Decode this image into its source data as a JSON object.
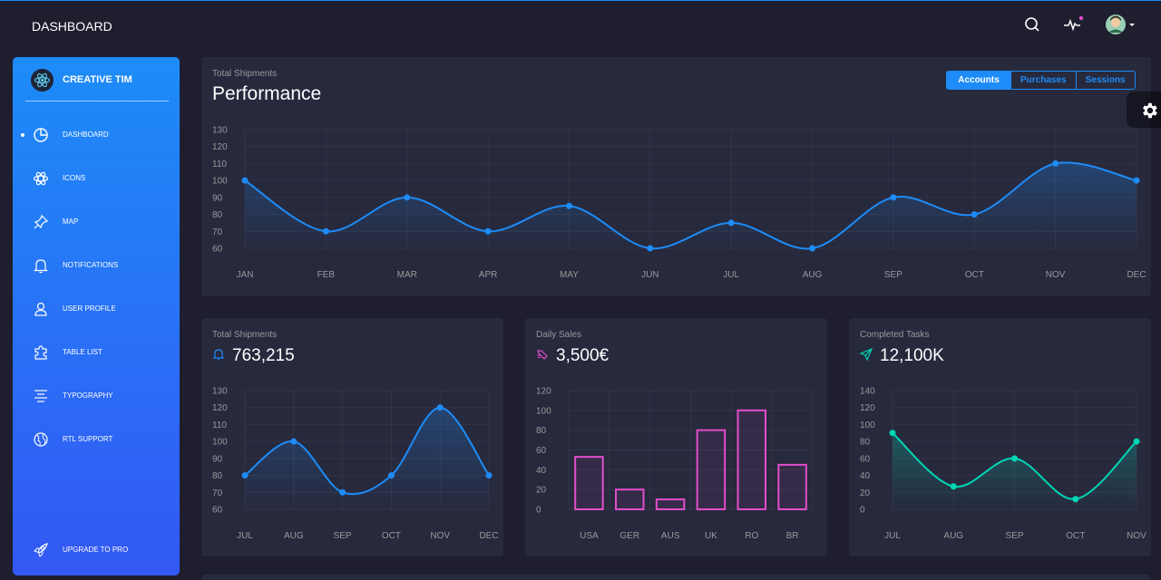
{
  "navbar": {
    "brand": "DASHBOARD",
    "icons": [
      "search-icon",
      "activity-icon",
      "avatar"
    ],
    "notification_color": "#e14eca"
  },
  "sidebar": {
    "logo_text": "CREATIVE TIM",
    "items": [
      {
        "label": "DASHBOARD",
        "icon": "chart-pie-icon",
        "active": true
      },
      {
        "label": "ICONS",
        "icon": "atom-icon",
        "active": false
      },
      {
        "label": "MAP",
        "icon": "pin-icon",
        "active": false
      },
      {
        "label": "NOTIFICATIONS",
        "icon": "bell-icon",
        "active": false
      },
      {
        "label": "USER PROFILE",
        "icon": "user-icon",
        "active": false
      },
      {
        "label": "TABLE LIST",
        "icon": "puzzle-icon",
        "active": false
      },
      {
        "label": "TYPOGRAPHY",
        "icon": "align-center-icon",
        "active": false
      },
      {
        "label": "RTL SUPPORT",
        "icon": "world-icon",
        "active": false
      }
    ],
    "upgrade_label": "UPGRADE TO PRO"
  },
  "main_card": {
    "category": "Total Shipments",
    "title": "Performance",
    "tabs": [
      "Accounts",
      "Purchases",
      "Sessions"
    ],
    "active_tab": "Accounts"
  },
  "cards": {
    "shipments": {
      "category": "Total Shipments",
      "value": "763,215",
      "icon": "bell-icon"
    },
    "sales": {
      "category": "Daily Sales",
      "value": "3,500€",
      "icon": "delivery-icon"
    },
    "tasks": {
      "category": "Completed Tasks",
      "value": "12,100K",
      "icon": "send-icon"
    }
  },
  "colors": {
    "primary": "#1d8cf8",
    "pink": "#e14eca",
    "green": "#00d6b4"
  },
  "chart_data": [
    {
      "type": "line",
      "title": "Performance",
      "categories": [
        "JAN",
        "FEB",
        "MAR",
        "APR",
        "MAY",
        "JUN",
        "JUL",
        "AUG",
        "SEP",
        "OCT",
        "NOV",
        "DEC"
      ],
      "values": [
        100,
        70,
        90,
        70,
        85,
        60,
        75,
        60,
        90,
        80,
        110,
        100
      ],
      "yticks": [
        130,
        120,
        110,
        100,
        90,
        80,
        70,
        60
      ],
      "ylim": [
        60,
        130
      ],
      "color": "#1d8cf8"
    },
    {
      "type": "line",
      "title": "Total Shipments",
      "categories": [
        "JUL",
        "AUG",
        "SEP",
        "OCT",
        "NOV",
        "DEC"
      ],
      "values": [
        80,
        100,
        70,
        80,
        120,
        80
      ],
      "yticks": [
        130,
        120,
        110,
        100,
        90,
        80,
        70,
        60
      ],
      "ylim": [
        60,
        130
      ],
      "color": "#1d8cf8"
    },
    {
      "type": "bar",
      "title": "Daily Sales",
      "categories": [
        "USA",
        "GER",
        "AUS",
        "UK",
        "RO",
        "BR"
      ],
      "values": [
        53,
        20,
        10,
        80,
        100,
        45
      ],
      "yticks": [
        120,
        100,
        80,
        60,
        40,
        20,
        0
      ],
      "ylim": [
        0,
        120
      ],
      "color": "#e14eca"
    },
    {
      "type": "line",
      "title": "Completed Tasks",
      "categories": [
        "JUL",
        "AUG",
        "SEP",
        "OCT",
        "NOV"
      ],
      "values": [
        90,
        27,
        60,
        12,
        80
      ],
      "yticks": [
        140,
        120,
        100,
        80,
        60,
        40,
        20,
        0
      ],
      "ylim": [
        0,
        140
      ],
      "color": "#00d6b4"
    }
  ]
}
